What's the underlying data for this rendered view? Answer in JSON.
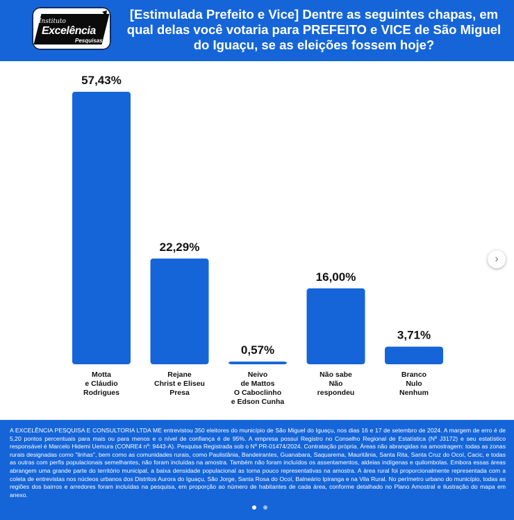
{
  "logo": {
    "line1": "Instituto",
    "line2": "Excelência",
    "line3": "Pesquisas"
  },
  "header": {
    "title": "[Estimulada Prefeito e Vice] Dentre as seguintes chapas, em qual delas você votaria para PREFEITO e VICE de São Miguel do Iguaçu, se as eleições fossem hoje?"
  },
  "colors": {
    "header_bg": "#1565d8",
    "bar": "#1565d8",
    "footer_bg": "#1565d8"
  },
  "chart_data": {
    "type": "bar",
    "title": "",
    "xlabel": "",
    "ylabel": "",
    "categories": [
      [
        "Motta",
        "e Cláudio",
        "Rodrigues"
      ],
      [
        "Rejane",
        "Christ e Eliseu",
        "Presa"
      ],
      [
        "Neivo",
        "de Mattos",
        "O Caboclinho",
        "e Edson Cunha"
      ],
      [
        "Não sabe",
        "Não",
        "respondeu"
      ],
      [
        "Branco",
        "Nulo",
        "Nenhum"
      ]
    ],
    "values": [
      57.43,
      22.29,
      0.57,
      16.0,
      3.71
    ],
    "value_labels": [
      "57,43%",
      "22,29%",
      "0,57%",
      "16,00%",
      "3,71%"
    ],
    "ylim": [
      0,
      57.43
    ],
    "grid": false,
    "legend": "none"
  },
  "footer": {
    "text": "A EXCELÊNCIA PESQUISA E CONSULTORIA LTDA ME entrevistou 350 eleitores do município de São Miguel do Iguaçu, nos dias 16 e 17 de setembro de 2024. A margem de erro é de 5,20 pontos percentuais para mais ou para menos e o nível de confiança é de 95%. A empresa possui Registro no Conselho Regional de Estatística (Nº J3172) e seu estatístico responsável é Marcelo Hidemi Uemura (CONRE4 nº: 9443-A). Pesquisa Registrada sob o Nº PR-01474/2024. Contratação própria. Áreas não abrangidas na amostragem: todas as zonas rurais designadas como \"linhas\", bem como as comunidades rurais, como Paulistânia, Bandeirantes, Guanabara, Saquarema, Mauritânia, Santa Rita, Santa Cruz do Ocoí, Cacic, e todas as outras com perfis populacionais semelhantes, não foram incluídas na amostra. Também não foram incluídos os assentamentos, aldeias indígenas e quilombolas. Embora essas áreas abrangem uma grande parte do território municipal, a baixa densidade populacional as torna pouco representativas na amostra. A área rural foi proporcionalmente representada com a coleta de entrevistas nos núcleos urbanos dos Distritos Aurora do Iguaçu, São Jorge, Santa Rosa do Ocoí, Balneário Ipiranga e na Vila Rural. No perímetro urbano do município, todas as regiões dos bairros e arredores foram incluídas na pesquisa, em proporção ao número de habitantes de cada área, conforme detalhado no Plano Amostral e ilustração do mapa em anexo."
  },
  "carousel": {
    "next_icon": "chevron-right-icon",
    "next_glyph": "›",
    "pages": 2,
    "active_page": 1
  }
}
